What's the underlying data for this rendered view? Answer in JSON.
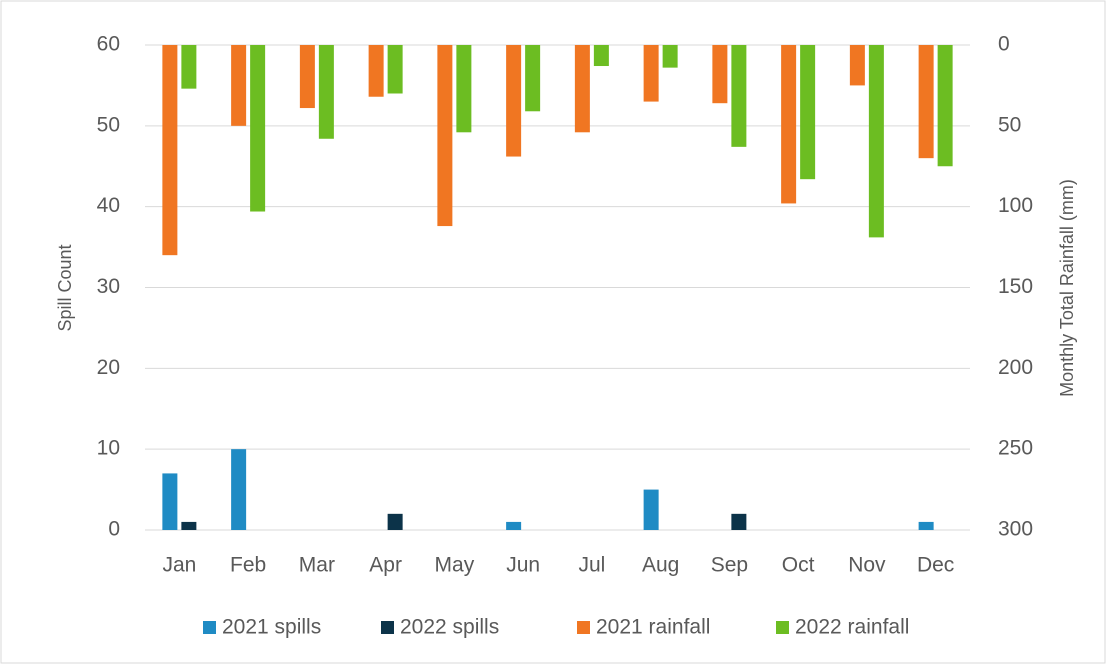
{
  "chart_data": {
    "type": "bar",
    "categories": [
      "Jan",
      "Feb",
      "Mar",
      "Apr",
      "May",
      "Jun",
      "Jul",
      "Aug",
      "Sep",
      "Oct",
      "Nov",
      "Dec"
    ],
    "y_label": "Spill Count",
    "y2_label": "Monthly Total Rainfall (mm)",
    "ylim": [
      0,
      60
    ],
    "yticks": [
      0,
      10,
      20,
      30,
      40,
      50,
      60
    ],
    "y2lim": [
      300,
      0
    ],
    "y2ticks": [
      0,
      50,
      100,
      150,
      200,
      250,
      300
    ],
    "grid": true,
    "legend": "bottom",
    "series": [
      {
        "name": "2021 spills",
        "color": "#1f8bc4",
        "values": [
          7,
          10,
          0,
          0,
          0,
          1,
          0,
          5,
          0,
          0,
          0,
          1
        ]
      },
      {
        "name": "2022 spills",
        "color": "#0c3349",
        "values": [
          1,
          0,
          0,
          2,
          0,
          0,
          0,
          0,
          2,
          0,
          0,
          0
        ]
      },
      {
        "name": "2021 rainfall",
        "color": "#f07622",
        "axis": "y2",
        "values": [
          130,
          50,
          39,
          32,
          112,
          69,
          54,
          35,
          36,
          98,
          25,
          70
        ]
      },
      {
        "name": "2022 rainfall",
        "color": "#6cbd22",
        "axis": "y2",
        "values": [
          27,
          103,
          58,
          30,
          54,
          41,
          13,
          14,
          63,
          83,
          119,
          75
        ]
      }
    ]
  }
}
